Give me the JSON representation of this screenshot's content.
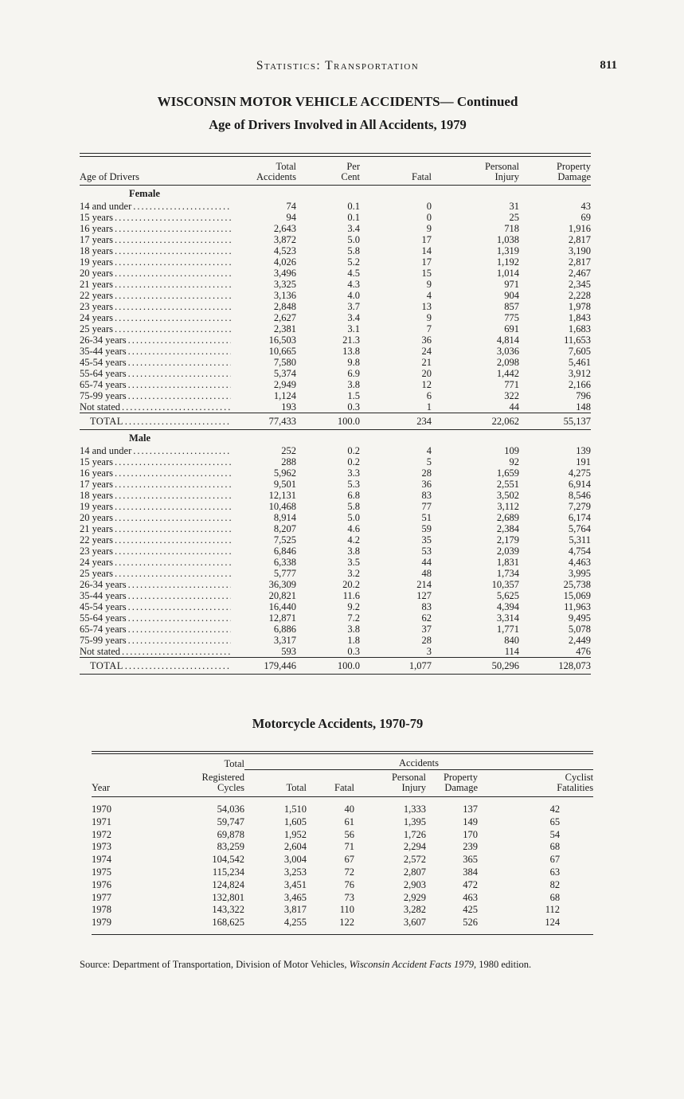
{
  "page": {
    "running_header": "Statistics: Transportation",
    "page_number": "811",
    "title_line1": "WISCONSIN MOTOR VEHICLE ACCIDENTS— Continued",
    "title_line2": "Age of Drivers Involved in All Accidents, 1979"
  },
  "drivers_table": {
    "headers": [
      {
        "lines": [
          "Age of Drivers"
        ]
      },
      {
        "lines": [
          "Total",
          "Accidents"
        ]
      },
      {
        "lines": [
          "Per",
          "Cent"
        ]
      },
      {
        "lines": [
          "Fatal"
        ]
      },
      {
        "lines": [
          "Personal",
          "Injury"
        ]
      },
      {
        "lines": [
          "Property",
          "Damage"
        ]
      }
    ],
    "sections": [
      {
        "label": "Female",
        "rows": [
          {
            "label": "14 and under",
            "vals": [
              "74",
              "0.1",
              "0",
              "31",
              "43"
            ]
          },
          {
            "label": "15 years",
            "vals": [
              "94",
              "0.1",
              "0",
              "25",
              "69"
            ]
          },
          {
            "label": "16 years",
            "vals": [
              "2,643",
              "3.4",
              "9",
              "718",
              "1,916"
            ]
          },
          {
            "label": "17 years",
            "vals": [
              "3,872",
              "5.0",
              "17",
              "1,038",
              "2,817"
            ]
          },
          {
            "label": "18 years",
            "vals": [
              "4,523",
              "5.8",
              "14",
              "1,319",
              "3,190"
            ]
          },
          {
            "label": "19 years",
            "vals": [
              "4,026",
              "5.2",
              "17",
              "1,192",
              "2,817"
            ]
          },
          {
            "label": "20 years",
            "vals": [
              "3,496",
              "4.5",
              "15",
              "1,014",
              "2,467"
            ]
          },
          {
            "label": "21 years",
            "vals": [
              "3,325",
              "4.3",
              "9",
              "971",
              "2,345"
            ]
          },
          {
            "label": "22 years",
            "vals": [
              "3,136",
              "4.0",
              "4",
              "904",
              "2,228"
            ]
          },
          {
            "label": "23 years",
            "vals": [
              "2,848",
              "3.7",
              "13",
              "857",
              "1,978"
            ]
          },
          {
            "label": "24 years",
            "vals": [
              "2,627",
              "3.4",
              "9",
              "775",
              "1,843"
            ]
          },
          {
            "label": "25 years",
            "vals": [
              "2,381",
              "3.1",
              "7",
              "691",
              "1,683"
            ]
          },
          {
            "label": "26-34 years",
            "vals": [
              "16,503",
              "21.3",
              "36",
              "4,814",
              "11,653"
            ]
          },
          {
            "label": "35-44 years",
            "vals": [
              "10,665",
              "13.8",
              "24",
              "3,036",
              "7,605"
            ]
          },
          {
            "label": "45-54 years",
            "vals": [
              "7,580",
              "9.8",
              "21",
              "2,098",
              "5,461"
            ]
          },
          {
            "label": "55-64 years",
            "vals": [
              "5,374",
              "6.9",
              "20",
              "1,442",
              "3,912"
            ]
          },
          {
            "label": "65-74 years",
            "vals": [
              "2,949",
              "3.8",
              "12",
              "771",
              "2,166"
            ]
          },
          {
            "label": "75-99 years",
            "vals": [
              "1,124",
              "1.5",
              "6",
              "322",
              "796"
            ]
          },
          {
            "label": "Not stated",
            "vals": [
              "193",
              "0.3",
              "1",
              "44",
              "148"
            ]
          }
        ],
        "total": {
          "label": "TOTAL",
          "vals": [
            "77,433",
            "100.0",
            "234",
            "22,062",
            "55,137"
          ]
        }
      },
      {
        "label": "Male",
        "rows": [
          {
            "label": "14 and under",
            "vals": [
              "252",
              "0.2",
              "4",
              "109",
              "139"
            ]
          },
          {
            "label": "15 years",
            "vals": [
              "288",
              "0.2",
              "5",
              "92",
              "191"
            ]
          },
          {
            "label": "16 years",
            "vals": [
              "5,962",
              "3.3",
              "28",
              "1,659",
              "4,275"
            ]
          },
          {
            "label": "17 years",
            "vals": [
              "9,501",
              "5.3",
              "36",
              "2,551",
              "6,914"
            ]
          },
          {
            "label": "18 years",
            "vals": [
              "12,131",
              "6.8",
              "83",
              "3,502",
              "8,546"
            ]
          },
          {
            "label": "19 years",
            "vals": [
              "10,468",
              "5.8",
              "77",
              "3,112",
              "7,279"
            ]
          },
          {
            "label": "20 years",
            "vals": [
              "8,914",
              "5.0",
              "51",
              "2,689",
              "6,174"
            ]
          },
          {
            "label": "21 years",
            "vals": [
              "8,207",
              "4.6",
              "59",
              "2,384",
              "5,764"
            ]
          },
          {
            "label": "22 years",
            "vals": [
              "7,525",
              "4.2",
              "35",
              "2,179",
              "5,311"
            ]
          },
          {
            "label": "23 years",
            "vals": [
              "6,846",
              "3.8",
              "53",
              "2,039",
              "4,754"
            ]
          },
          {
            "label": "24 years",
            "vals": [
              "6,338",
              "3.5",
              "44",
              "1,831",
              "4,463"
            ]
          },
          {
            "label": "25 years",
            "vals": [
              "5,777",
              "3.2",
              "48",
              "1,734",
              "3,995"
            ]
          },
          {
            "label": "26-34 years",
            "vals": [
              "36,309",
              "20.2",
              "214",
              "10,357",
              "25,738"
            ]
          },
          {
            "label": "35-44 years",
            "vals": [
              "20,821",
              "11.6",
              "127",
              "5,625",
              "15,069"
            ]
          },
          {
            "label": "45-54 years",
            "vals": [
              "16,440",
              "9.2",
              "83",
              "4,394",
              "11,963"
            ]
          },
          {
            "label": "55-64 years",
            "vals": [
              "12,871",
              "7.2",
              "62",
              "3,314",
              "9,495"
            ]
          },
          {
            "label": "65-74 years",
            "vals": [
              "6,886",
              "3.8",
              "37",
              "1,771",
              "5,078"
            ]
          },
          {
            "label": "75-99 years",
            "vals": [
              "3,317",
              "1.8",
              "28",
              "840",
              "2,449"
            ]
          },
          {
            "label": "Not stated",
            "vals": [
              "593",
              "0.3",
              "3",
              "114",
              "476"
            ]
          }
        ],
        "total": {
          "label": "TOTAL",
          "vals": [
            "179,446",
            "100.0",
            "1,077",
            "50,296",
            "128,073"
          ]
        }
      }
    ]
  },
  "motorcycle_table": {
    "title": "Motorcycle Accidents, 1970-79",
    "group_total": "Total",
    "group_accidents": "Accidents",
    "headers": [
      [
        "Year"
      ],
      [
        "Registered",
        "Cycles"
      ],
      [
        "Total"
      ],
      [
        "Fatal"
      ],
      [
        "Personal",
        "Injury"
      ],
      [
        "Property",
        "Damage"
      ],
      [
        "Cyclist",
        "Fatalities"
      ]
    ],
    "rows": [
      [
        "1970",
        "54,036",
        "1,510",
        "40",
        "1,333",
        "137",
        "42"
      ],
      [
        "1971",
        "59,747",
        "1,605",
        "61",
        "1,395",
        "149",
        "65"
      ],
      [
        "1972",
        "69,878",
        "1,952",
        "56",
        "1,726",
        "170",
        "54"
      ],
      [
        "1973",
        "83,259",
        "2,604",
        "71",
        "2,294",
        "239",
        "68"
      ],
      [
        "1974",
        "104,542",
        "3,004",
        "67",
        "2,572",
        "365",
        "67"
      ],
      [
        "1975",
        "115,234",
        "3,253",
        "72",
        "2,807",
        "384",
        "63"
      ],
      [
        "1976",
        "124,824",
        "3,451",
        "76",
        "2,903",
        "472",
        "82"
      ],
      [
        "1977",
        "132,801",
        "3,465",
        "73",
        "2,929",
        "463",
        "68"
      ],
      [
        "1978",
        "143,322",
        "3,817",
        "110",
        "3,282",
        "425",
        "112"
      ],
      [
        "1979",
        "168,625",
        "4,255",
        "122",
        "3,607",
        "526",
        "124"
      ]
    ]
  },
  "source": {
    "prefix": "Source: Department of Transportation, Division of Motor Vehicles, ",
    "italic": "Wisconsin Accident Facts 1979",
    "suffix": ", 1980 edition."
  }
}
